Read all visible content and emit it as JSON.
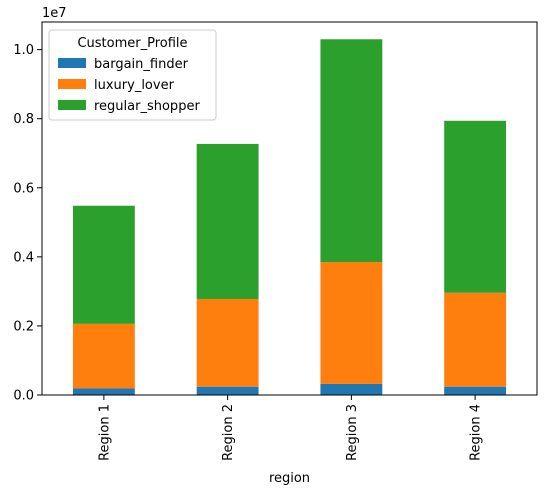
{
  "chart_data": {
    "type": "bar",
    "stacked": true,
    "categories": [
      "Region 1",
      "Region 2",
      "Region 3",
      "Region 4"
    ],
    "series": [
      {
        "name": "bargain_finder",
        "color": "#1f77b4",
        "values": [
          190000,
          240000,
          320000,
          240000
        ]
      },
      {
        "name": "luxury_lover",
        "color": "#ff7f0e",
        "values": [
          1870000,
          2540000,
          3530000,
          2720000
        ]
      },
      {
        "name": "regular_shopper",
        "color": "#2ca02c",
        "values": [
          3420000,
          4490000,
          6450000,
          4980000
        ]
      }
    ],
    "xlabel": "region",
    "ylabel": "",
    "ylim": [
      0,
      10800000
    ],
    "yticks": [
      0,
      2000000,
      4000000,
      6000000,
      8000000,
      10000000
    ],
    "ytick_labels": [
      "0.0",
      "0.2",
      "0.4",
      "0.6",
      "0.8",
      "1.0"
    ],
    "y_offset_label": "1e7",
    "legend": {
      "title": "Customer_Profile",
      "position": "top-left"
    },
    "grid": false
  }
}
